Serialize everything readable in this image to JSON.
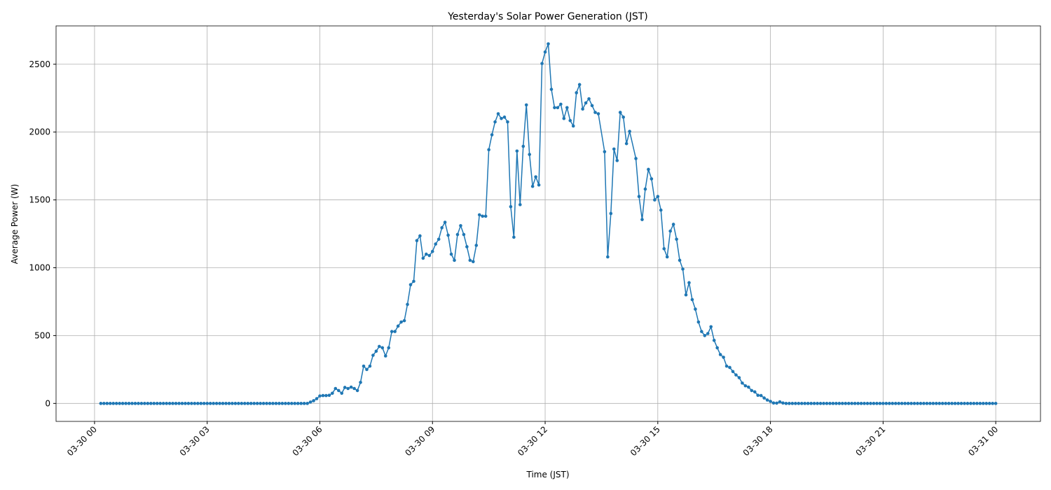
{
  "chart_data": {
    "type": "line",
    "title": "Yesterday's Solar Power Generation (JST)",
    "x_label": "Time (JST)",
    "y_label": "Average Power (W)",
    "grid": true,
    "xlim": [
      -61.5,
      1511.5
    ],
    "ylim": [
      -132.5,
      2782.5
    ],
    "xticks": [
      {
        "value": 0,
        "label": "03-30 00"
      },
      {
        "value": 180,
        "label": "03-30 03"
      },
      {
        "value": 360,
        "label": "03-30 06"
      },
      {
        "value": 540,
        "label": "03-30 09"
      },
      {
        "value": 720,
        "label": "03-30 12"
      },
      {
        "value": 900,
        "label": "03-30 15"
      },
      {
        "value": 1080,
        "label": "03-30 18"
      },
      {
        "value": 1260,
        "label": "03-30 21"
      },
      {
        "value": 1440,
        "label": "03-31 00"
      }
    ],
    "yticks": [
      0,
      500,
      1000,
      1500,
      2000,
      2500
    ],
    "series": [
      {
        "name": "Average Power",
        "color": "#1f77b4",
        "x": [
          10,
          15,
          20,
          25,
          30,
          35,
          40,
          45,
          50,
          55,
          60,
          65,
          70,
          75,
          80,
          85,
          90,
          95,
          100,
          105,
          110,
          115,
          120,
          125,
          130,
          135,
          140,
          145,
          150,
          155,
          160,
          165,
          170,
          175,
          180,
          185,
          190,
          195,
          200,
          205,
          210,
          215,
          220,
          225,
          230,
          235,
          240,
          245,
          250,
          255,
          260,
          265,
          270,
          275,
          280,
          285,
          290,
          295,
          300,
          305,
          310,
          315,
          320,
          325,
          330,
          335,
          340,
          345,
          350,
          355,
          360,
          365,
          370,
          375,
          380,
          385,
          390,
          395,
          400,
          405,
          410,
          415,
          420,
          425,
          430,
          435,
          440,
          445,
          450,
          455,
          460,
          465,
          470,
          475,
          480,
          485,
          490,
          495,
          500,
          505,
          510,
          515,
          520,
          525,
          530,
          535,
          540,
          545,
          550,
          555,
          560,
          565,
          570,
          575,
          580,
          585,
          590,
          595,
          600,
          605,
          610,
          615,
          620,
          625,
          630,
          635,
          640,
          645,
          650,
          655,
          660,
          665,
          670,
          675,
          680,
          685,
          690,
          695,
          700,
          705,
          710,
          715,
          720,
          725,
          730,
          735,
          740,
          745,
          750,
          755,
          760,
          765,
          770,
          775,
          780,
          785,
          790,
          795,
          800,
          805,
          815,
          820,
          825,
          830,
          835,
          840,
          845,
          850,
          855,
          865,
          870,
          875,
          880,
          885,
          890,
          895,
          900,
          905,
          910,
          915,
          920,
          925,
          930,
          935,
          940,
          945,
          950,
          955,
          960,
          965,
          970,
          975,
          980,
          985,
          990,
          995,
          1000,
          1005,
          1010,
          1015,
          1020,
          1025,
          1030,
          1035,
          1040,
          1045,
          1050,
          1055,
          1060,
          1065,
          1070,
          1075,
          1080,
          1085,
          1090,
          1095,
          1100,
          1105,
          1110,
          1115,
          1120,
          1125,
          1130,
          1135,
          1140,
          1145,
          1150,
          1155,
          1160,
          1165,
          1170,
          1175,
          1180,
          1185,
          1190,
          1195,
          1200,
          1205,
          1210,
          1215,
          1220,
          1225,
          1230,
          1235,
          1240,
          1245,
          1250,
          1255,
          1260,
          1265,
          1270,
          1275,
          1280,
          1285,
          1290,
          1295,
          1300,
          1305,
          1310,
          1315,
          1320,
          1325,
          1330,
          1335,
          1340,
          1345,
          1350,
          1355,
          1360,
          1365,
          1370,
          1375,
          1380,
          1385,
          1390,
          1395,
          1400,
          1405,
          1410,
          1415,
          1420,
          1425,
          1430,
          1435,
          1440
        ],
        "values": [
          0,
          0,
          0,
          0,
          0,
          0,
          0,
          0,
          0,
          0,
          0,
          0,
          0,
          0,
          0,
          0,
          0,
          0,
          0,
          0,
          0,
          0,
          0,
          0,
          0,
          0,
          0,
          0,
          0,
          0,
          0,
          0,
          0,
          0,
          0,
          0,
          0,
          0,
          0,
          0,
          0,
          0,
          0,
          0,
          0,
          0,
          0,
          0,
          0,
          0,
          0,
          0,
          0,
          0,
          0,
          0,
          0,
          0,
          0,
          0,
          0,
          0,
          0,
          0,
          0,
          0,
          0,
          10,
          20,
          35,
          55,
          58,
          58,
          60,
          75,
          110,
          95,
          75,
          118,
          110,
          120,
          110,
          95,
          155,
          275,
          250,
          275,
          355,
          385,
          420,
          410,
          350,
          410,
          530,
          530,
          570,
          600,
          610,
          730,
          875,
          900,
          1200,
          1235,
          1070,
          1100,
          1090,
          1120,
          1175,
          1210,
          1295,
          1335,
          1240,
          1100,
          1055,
          1245,
          1310,
          1245,
          1155,
          1055,
          1045,
          1165,
          1390,
          1380,
          1380,
          1870,
          1980,
          2075,
          2135,
          2100,
          2110,
          2075,
          1450,
          1225,
          1860,
          1465,
          1895,
          2200,
          1835,
          1600,
          1670,
          1610,
          2505,
          2590,
          2650,
          2315,
          2180,
          2180,
          2205,
          2100,
          2180,
          2085,
          2045,
          2290,
          2350,
          2170,
          2215,
          2245,
          2195,
          2145,
          2135,
          1855,
          1080,
          1400,
          1875,
          1790,
          2145,
          2110,
          1915,
          2005,
          1805,
          1525,
          1355,
          1580,
          1725,
          1655,
          1500,
          1525,
          1425,
          1140,
          1080,
          1270,
          1320,
          1210,
          1055,
          990,
          800,
          890,
          765,
          695,
          600,
          530,
          500,
          515,
          565,
          465,
          410,
          360,
          340,
          275,
          265,
          235,
          210,
          190,
          150,
          130,
          120,
          95,
          85,
          60,
          58,
          40,
          25,
          15,
          3,
          2,
          12,
          3,
          0,
          0,
          0,
          0,
          0,
          0,
          0,
          0,
          0,
          0,
          0,
          0,
          0,
          0,
          0,
          0,
          0,
          0,
          0,
          0,
          0,
          0,
          0,
          0,
          0,
          0,
          0,
          0,
          0,
          0,
          0,
          0,
          0,
          0,
          0,
          0,
          0,
          0,
          0,
          0,
          0,
          0,
          0,
          0,
          0,
          0,
          0,
          0,
          0,
          0,
          0,
          0,
          0,
          0,
          0,
          0,
          0,
          0,
          0,
          0,
          0,
          0,
          0,
          0,
          0,
          0,
          0,
          0
        ]
      }
    ]
  }
}
